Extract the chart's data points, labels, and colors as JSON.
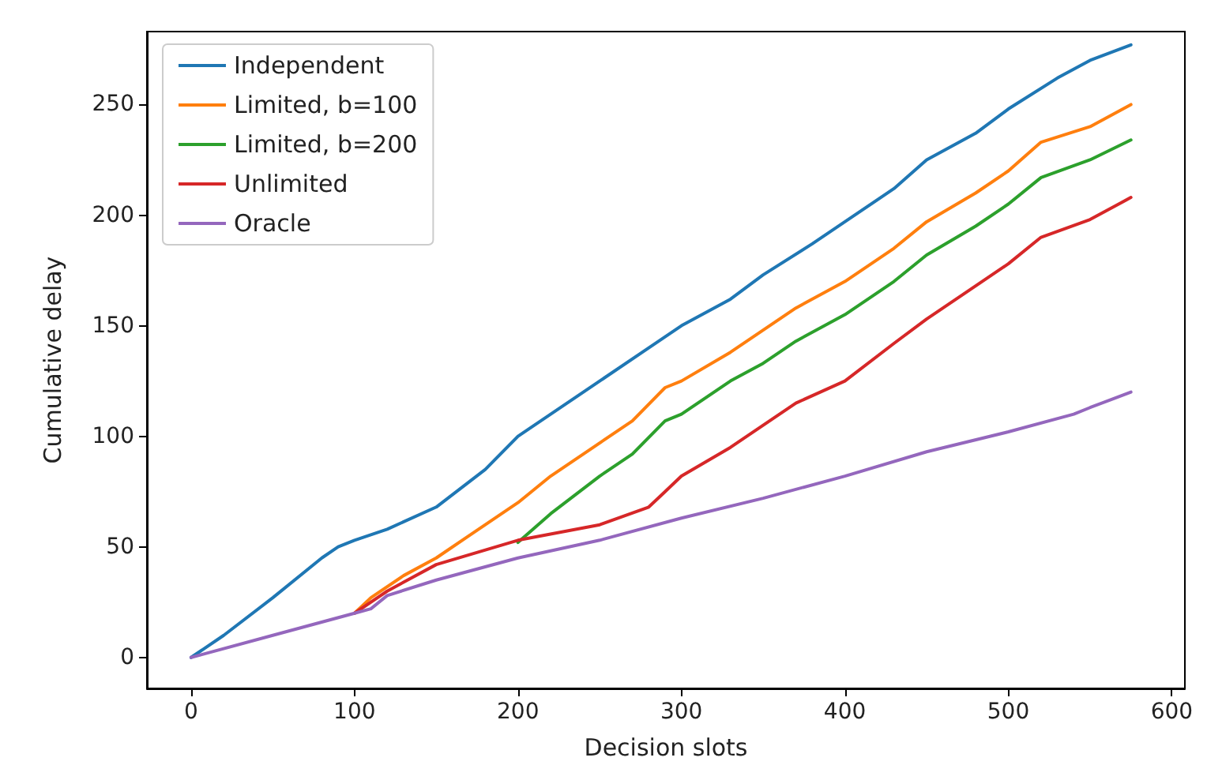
{
  "chart_data": {
    "type": "line",
    "xlabel": "Decision slots",
    "ylabel": "Cumulative delay",
    "xlim": [
      -27,
      608
    ],
    "ylim": [
      -14,
      283
    ],
    "xticks": [
      0,
      100,
      200,
      300,
      400,
      500,
      600
    ],
    "yticks": [
      0,
      50,
      100,
      150,
      200,
      250
    ],
    "grid": false,
    "legend": "top left",
    "marker": "none",
    "line_style": "solid",
    "series": [
      {
        "name": "Independent",
        "color": "#1f77b4",
        "x": [
          0,
          20,
          50,
          80,
          90,
          100,
          120,
          150,
          180,
          200,
          230,
          250,
          280,
          300,
          330,
          350,
          380,
          400,
          430,
          450,
          480,
          500,
          530,
          550,
          575
        ],
        "values": [
          0,
          10,
          27,
          45,
          50,
          53,
          58,
          68,
          85,
          100,
          115,
          125,
          140,
          150,
          162,
          173,
          187,
          197,
          212,
          225,
          237,
          248,
          262,
          270,
          277
        ]
      },
      {
        "name": "Limited, b=100",
        "color": "#ff7f0e",
        "x": [
          100,
          110,
          130,
          150,
          170,
          200,
          220,
          250,
          270,
          290,
          300,
          330,
          350,
          370,
          400,
          430,
          450,
          480,
          500,
          520,
          550,
          575
        ],
        "values": [
          20,
          27,
          37,
          45,
          55,
          70,
          82,
          97,
          107,
          122,
          125,
          138,
          148,
          158,
          170,
          185,
          197,
          210,
          220,
          233,
          240,
          250
        ]
      },
      {
        "name": "Limited, b=200",
        "color": "#2ca02c",
        "x": [
          200,
          220,
          250,
          270,
          290,
          300,
          330,
          350,
          370,
          400,
          430,
          450,
          480,
          500,
          520,
          550,
          575
        ],
        "values": [
          52,
          65,
          82,
          92,
          107,
          110,
          125,
          133,
          143,
          155,
          170,
          182,
          195,
          205,
          217,
          225,
          234
        ]
      },
      {
        "name": "Unlimited",
        "color": "#d62728",
        "x": [
          100,
          120,
          150,
          200,
          250,
          280,
          290,
          300,
          330,
          350,
          370,
          400,
          430,
          450,
          480,
          500,
          520,
          550,
          575
        ],
        "values": [
          20,
          30,
          42,
          53,
          60,
          68,
          75,
          82,
          95,
          105,
          115,
          125,
          142,
          153,
          168,
          178,
          190,
          198,
          208
        ]
      },
      {
        "name": "Oracle",
        "color": "#9467bd",
        "x": [
          0,
          50,
          100,
          110,
          120,
          150,
          200,
          250,
          300,
          350,
          400,
          450,
          500,
          540,
          550,
          575
        ],
        "values": [
          0,
          10,
          20,
          22,
          28,
          35,
          45,
          53,
          63,
          72,
          82,
          93,
          102,
          110,
          113,
          120
        ]
      }
    ]
  }
}
